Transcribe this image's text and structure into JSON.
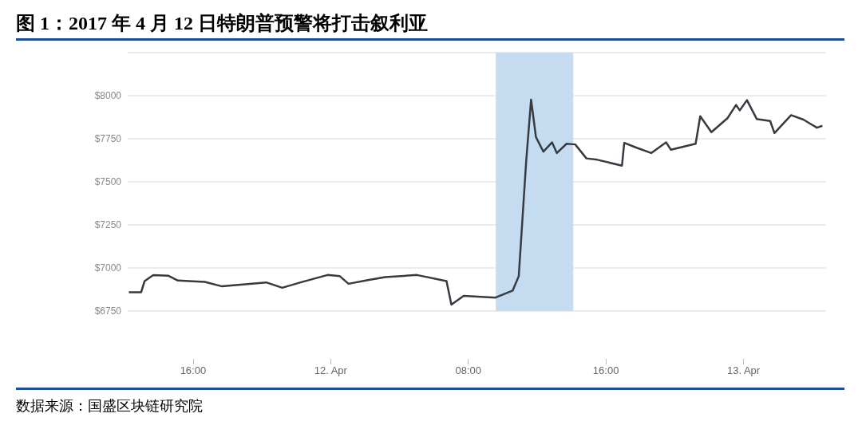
{
  "chart_data": {
    "type": "line",
    "title": "图 1：2017 年 4 月 12 日特朗普预警将打击叙利亚",
    "annotations": [
      "数据来源：国盛区块链研究院"
    ],
    "x": [
      "--04-11T12:16",
      "--04-11T12:59",
      "--04-11T13:11",
      "--04-11T13:41",
      "--04-11T14:33",
      "--04-11T15:07",
      "--04-11T16:41",
      "--04-11T17:41",
      "--04-11T20:15",
      "--04-11T21:11",
      "--04-11T22:15",
      "--04-11T23:49",
      "--04-12T00:32",
      "--04-12T01:02",
      "--04-12T02:06",
      "--04-12T03:10",
      "--04-12T05:01",
      "--04-12T06:44",
      "--04-12T07:01",
      "--04-12T07:44",
      "--04-12T09:35",
      "--04-12T10:35",
      "--04-12T10:56",
      "--04-12T11:22",
      "--04-12T11:39",
      "--04-12T11:56",
      "--04-12T12:22",
      "--04-12T12:52",
      "--04-12T13:09",
      "--04-12T13:43",
      "--04-12T14:13",
      "--04-12T14:52",
      "--04-12T15:30",
      "--04-12T16:56",
      "--04-12T17:04",
      "--04-12T17:47",
      "--04-12T18:38",
      "--04-12T19:30",
      "--04-12T19:47",
      "--04-12T21:13",
      "--04-12T21:29",
      "--04-12T22:08",
      "--04-12T23:04",
      "--04-12T23:34",
      "--04-12T23:47",
      "--04-13T00:12",
      "--04-13T00:46",
      "--04-13T01:33",
      "--04-13T01:48",
      "--04-13T02:46",
      "--04-13T03:29",
      "--04-13T04:16",
      "--04-13T04:35"
    ],
    "series": [
      {
        "color": "#363b42",
        "values": [
          6859,
          6859,
          6924,
          6958,
          6955,
          6927,
          6919,
          6893,
          6916,
          6885,
          6916,
          6959,
          6952,
          6908,
          6928,
          6947,
          6959,
          6924,
          6787,
          6838,
          6828,
          6869,
          6952,
          7621,
          7977,
          7760,
          7675,
          7729,
          7667,
          7721,
          7717,
          7636,
          7628,
          7594,
          7726,
          7698,
          7667,
          7729,
          7686,
          7721,
          7881,
          7788,
          7869,
          7946,
          7915,
          7974,
          7865,
          7853,
          7783,
          7887,
          7861,
          7814,
          7825
        ]
      }
    ],
    "xlim": [
      "--04-11T12:12",
      "--04-13T04:48"
    ],
    "xticks": [
      {
        "value": "--04-11T16:00",
        "label": "16:00"
      },
      {
        "value": "--04-12T00:00",
        "label": "12. Apr"
      },
      {
        "value": "--04-12T08:00",
        "label": "08:00"
      },
      {
        "value": "--04-12T16:00",
        "label": "16:00"
      },
      {
        "value": "--04-13T00:00",
        "label": "13. Apr"
      }
    ],
    "ylim": [
      6750,
      8250
    ],
    "yticks": [
      {
        "value": 6750,
        "label": "$6750"
      },
      {
        "value": 7000,
        "label": "$7000"
      },
      {
        "value": 7250,
        "label": "$7250"
      },
      {
        "value": 7500,
        "label": "$7500"
      },
      {
        "value": 7750,
        "label": "$7750"
      },
      {
        "value": 8000,
        "label": "$8000"
      },
      {
        "value": 8250,
        "label": null
      }
    ],
    "grid": "y",
    "bands": [
      {
        "axis": "x",
        "from": "--04-12T09:36",
        "to": "--04-12T14:06",
        "color": "#c5dcf0"
      }
    ]
  }
}
